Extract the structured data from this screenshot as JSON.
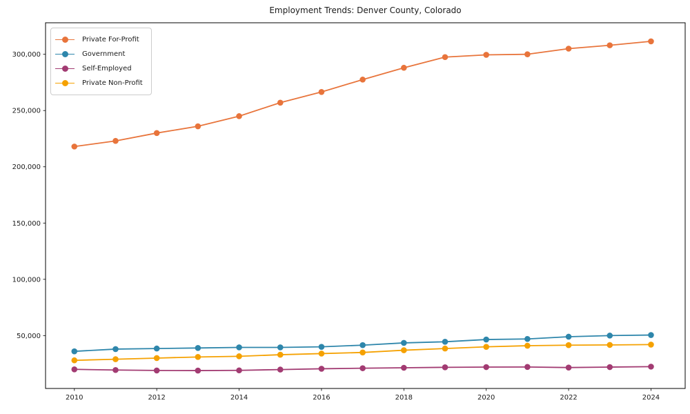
{
  "chart_data": {
    "type": "line",
    "title": "Employment Trends: Denver County, Colorado",
    "xlabel": "",
    "ylabel": "",
    "x": [
      2010,
      2011,
      2012,
      2013,
      2014,
      2015,
      2016,
      2017,
      2018,
      2019,
      2020,
      2021,
      2022,
      2023,
      2024
    ],
    "series": [
      {
        "name": "Private For-Profit",
        "color": "#e8743b",
        "values": [
          218000,
          223000,
          230000,
          236000,
          245000,
          257000,
          266500,
          277500,
          288000,
          297500,
          299500,
          300000,
          305000,
          308000,
          311500
        ]
      },
      {
        "name": "Government",
        "color": "#2e86ab",
        "values": [
          36000,
          38000,
          38500,
          39000,
          39500,
          39500,
          40000,
          41500,
          43500,
          44500,
          46500,
          47000,
          49000,
          50000,
          50500
        ]
      },
      {
        "name": "Self-Employed",
        "color": "#a23b72",
        "values": [
          20000,
          19400,
          19000,
          18900,
          19100,
          19800,
          20500,
          21000,
          21400,
          21800,
          22000,
          22100,
          21600,
          22000,
          22400
        ]
      },
      {
        "name": "Private Non-Profit",
        "color": "#f5a101",
        "values": [
          28000,
          29000,
          30000,
          31000,
          31600,
          33000,
          34000,
          35000,
          37000,
          38500,
          40000,
          41000,
          41500,
          41700,
          42000
        ]
      }
    ],
    "x_ticks": [
      2010,
      2012,
      2014,
      2016,
      2018,
      2020,
      2022,
      2024
    ],
    "y_ticks": [
      50000,
      100000,
      150000,
      200000,
      250000,
      300000
    ],
    "xlim": [
      2009.3,
      2024.83
    ],
    "ylim": [
      3000,
      328000
    ],
    "grid": false,
    "legend_position": "upper left",
    "background": "#ffffff"
  }
}
